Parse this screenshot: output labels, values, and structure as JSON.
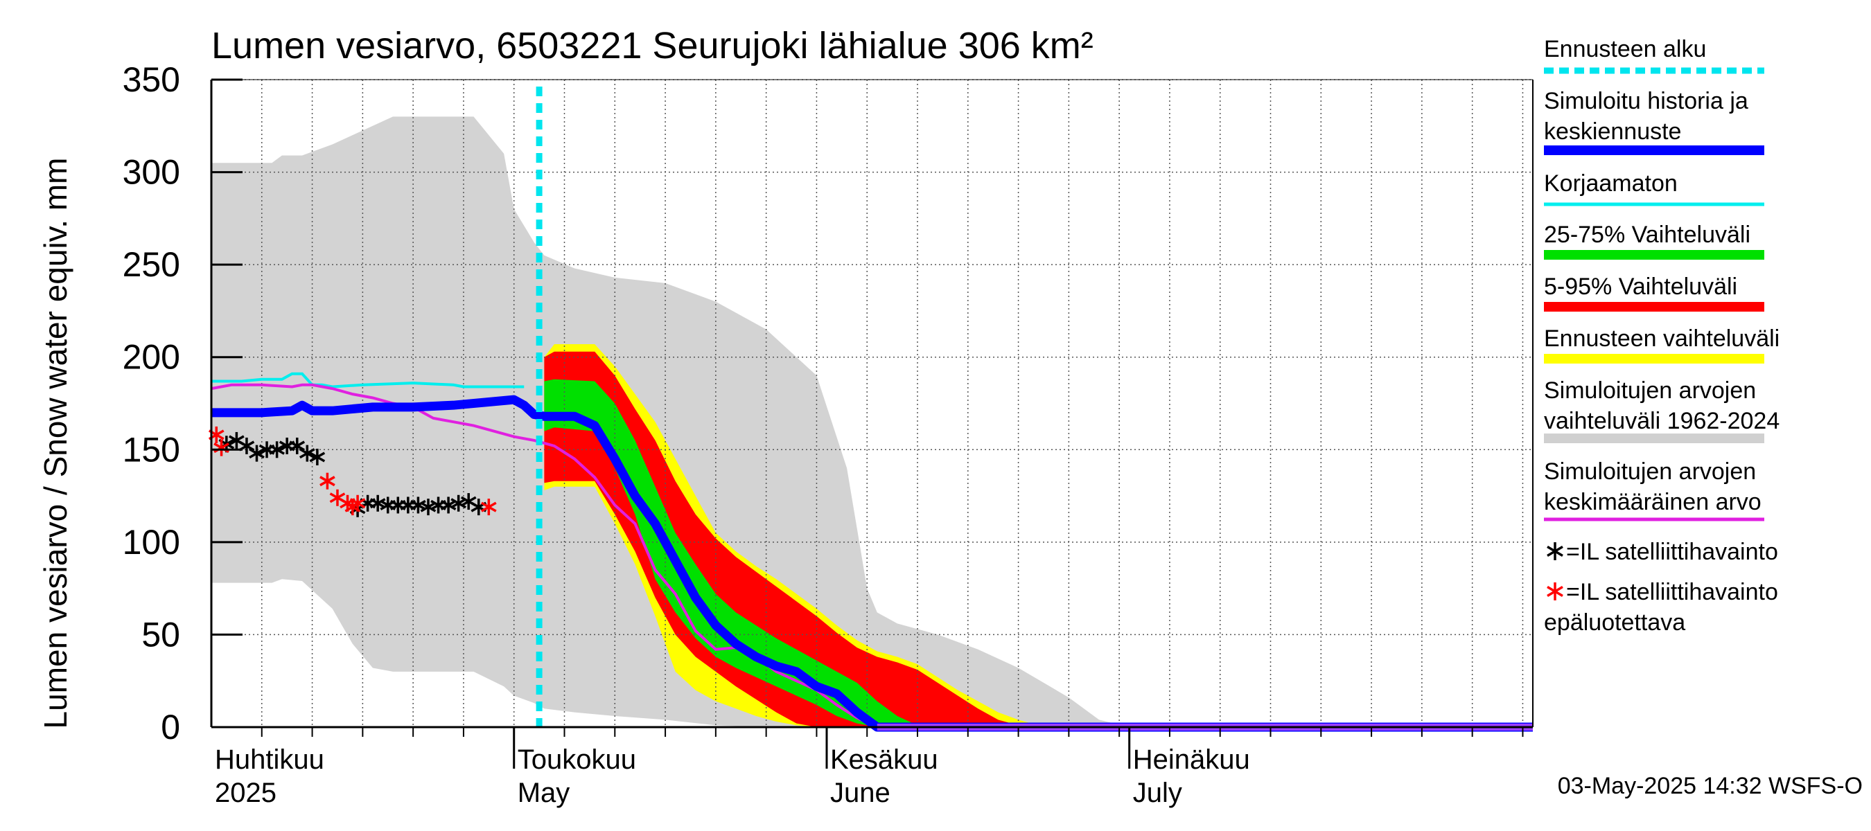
{
  "chart_data": {
    "type": "area",
    "title": "Lumen vesiarvo, 6503221 Seurujoki lähialue 306 km²",
    "ylabel": "Lumen vesiarvo / Snow water equiv.    mm",
    "ylim": [
      0,
      350
    ],
    "yticks": [
      0,
      50,
      100,
      150,
      200,
      250,
      300,
      350
    ],
    "xlim_days": [
      0,
      131
    ],
    "x_unit": "days since 2025-04-01",
    "forecast_start_day": 32.5,
    "month_labels": [
      {
        "day": 0,
        "fi": "Huhtikuu",
        "en": "2025"
      },
      {
        "day": 30,
        "fi": "Toukokuu",
        "en": "May"
      },
      {
        "day": 61,
        "fi": "Kesäkuu",
        "en": "June"
      },
      {
        "day": 91,
        "fi": "Heinäkuu",
        "en": "July"
      }
    ],
    "timestamp": "03-May-2025 14:32 WSFS-O",
    "legend": [
      {
        "label": "Ennusteen alku",
        "color": "#00e5ee",
        "style": "dotted"
      },
      {
        "label": "Simuloitu historia ja keskiennuste",
        "color": "#0000ff",
        "style": "thick"
      },
      {
        "label": "Korjaamaton",
        "color": "#00eeee",
        "style": "thin"
      },
      {
        "label": "25-75% Vaihteluväli",
        "color": "#00e000",
        "style": "band"
      },
      {
        "label": "5-95% Vaihteluväli",
        "color": "#ff0000",
        "style": "band"
      },
      {
        "label": "Ennusteen vaihteluväli",
        "color": "#ffff00",
        "style": "band"
      },
      {
        "label": "Simuloitujen arvojen vaihteluväli 1962-2024",
        "color": "#d0d0d0",
        "style": "band"
      },
      {
        "label": "Simuloitujen arvojen keskimääräinen arvo",
        "color": "#e020e0",
        "style": "thin"
      },
      {
        "label": "=IL satelliittihavainto",
        "color": "#000000",
        "style": "star"
      },
      {
        "label": "=IL satelliittihavainto epäluotettava",
        "color": "#ff0000",
        "style": "star"
      }
    ],
    "series": {
      "hist_range": {
        "name": "Simuloitujen arvojen vaihteluväli 1962-2024",
        "x": [
          0,
          6,
          7,
          9,
          10,
          12,
          14,
          16,
          18,
          21,
          26,
          29,
          30,
          32,
          33,
          36,
          40,
          45,
          50,
          55,
          60,
          63,
          65,
          66,
          68,
          72,
          76,
          80,
          85,
          88,
          91
        ],
        "upper": [
          305,
          305,
          309,
          309,
          311,
          315,
          320,
          325,
          330,
          330,
          330,
          310,
          280,
          262,
          255,
          248,
          243,
          240,
          230,
          215,
          190,
          140,
          75,
          62,
          56,
          50,
          42,
          32,
          16,
          4,
          0
        ],
        "lower": [
          78,
          78,
          80,
          79,
          74,
          64,
          45,
          32,
          30,
          30,
          30,
          22,
          17,
          13,
          10,
          8,
          6,
          4,
          1,
          0,
          0,
          0,
          0,
          0,
          0,
          0,
          0,
          0,
          0,
          0,
          0
        ]
      },
      "forecast_range": {
        "name": "Ennusteen vaihteluväli",
        "x": [
          33,
          34,
          38,
          40,
          42,
          44,
          46,
          48,
          50,
          52,
          54,
          56,
          58,
          60,
          62,
          64,
          66,
          68,
          70,
          72,
          74,
          76,
          78,
          80,
          82,
          84
        ],
        "upper": [
          200,
          207,
          207,
          195,
          180,
          165,
          145,
          125,
          105,
          95,
          87,
          80,
          72,
          64,
          55,
          47,
          41,
          38,
          34,
          27,
          20,
          14,
          8,
          4,
          1,
          0
        ],
        "lower": [
          128,
          130,
          130,
          110,
          88,
          60,
          30,
          20,
          14,
          10,
          6,
          3,
          1,
          0,
          0,
          0,
          0,
          0,
          0,
          0,
          0,
          0,
          0,
          0,
          0,
          0
        ]
      },
      "p5_95": {
        "name": "5-95% Vaihteluväli",
        "x": [
          33,
          34,
          38,
          40,
          42,
          44,
          46,
          48,
          50,
          52,
          54,
          56,
          58,
          60,
          62,
          64,
          66,
          68,
          70,
          72,
          74,
          76,
          78,
          80,
          82
        ],
        "upper": [
          200,
          203,
          203,
          190,
          172,
          155,
          133,
          115,
          102,
          92,
          84,
          76,
          68,
          60,
          51,
          43,
          38,
          35,
          31,
          24,
          17,
          10,
          4,
          1,
          0
        ],
        "lower": [
          132,
          133,
          133,
          115,
          95,
          70,
          50,
          38,
          30,
          22,
          15,
          8,
          2,
          0,
          0,
          0,
          0,
          0,
          0,
          0,
          0,
          0,
          0,
          0,
          0
        ]
      },
      "p25_75": {
        "name": "25-75% Vaihteluväli",
        "x": [
          33,
          34,
          38,
          40,
          42,
          44,
          46,
          48,
          50,
          52,
          54,
          56,
          58,
          60,
          62,
          64,
          66,
          68,
          70,
          72
        ],
        "upper": [
          187,
          188,
          187,
          175,
          155,
          130,
          105,
          88,
          72,
          62,
          55,
          48,
          42,
          36,
          30,
          24,
          14,
          6,
          1,
          0
        ],
        "lower": [
          160,
          162,
          160,
          140,
          115,
          80,
          62,
          48,
          38,
          32,
          27,
          22,
          17,
          12,
          6,
          2,
          0,
          0,
          0,
          0
        ]
      },
      "median": {
        "name": "Simuloitu historia ja keskiennuste",
        "x": [
          0,
          5,
          8,
          9,
          10,
          12,
          16,
          18,
          20,
          24,
          30,
          31,
          32,
          33,
          34,
          36,
          38,
          40,
          42,
          44,
          46,
          48,
          50,
          52,
          54,
          56,
          58,
          60,
          62,
          64,
          66,
          131
        ],
        "y": [
          170,
          170,
          171,
          174,
          171,
          171,
          173,
          173,
          173,
          174,
          177,
          174,
          169,
          168,
          168,
          168,
          163,
          145,
          125,
          110,
          90,
          70,
          55,
          45,
          38,
          33,
          30,
          22,
          18,
          8,
          0,
          0
        ]
      },
      "uncorrected": {
        "name": "Korjaamaton",
        "x": [
          0,
          3,
          5,
          7,
          8,
          9,
          10,
          11,
          12,
          15,
          20,
          24,
          25,
          31
        ],
        "y": [
          187,
          187,
          188,
          188,
          191,
          191,
          185,
          185,
          184,
          185,
          186,
          185,
          184,
          184
        ]
      },
      "mean": {
        "name": "Simuloitujen arvojen keskimääräinen arvo",
        "x": [
          0,
          2,
          5,
          8,
          9,
          10,
          12,
          14,
          16,
          18,
          20,
          22,
          24,
          26,
          28,
          30,
          32,
          34,
          36,
          38,
          40,
          42,
          44,
          46,
          48,
          50,
          52,
          54,
          56,
          58,
          60,
          62,
          64,
          66,
          131
        ],
        "y": [
          183,
          185,
          185,
          184,
          185,
          185,
          183,
          180,
          178,
          175,
          173,
          167,
          165,
          163,
          160,
          157,
          155,
          152,
          145,
          135,
          120,
          110,
          85,
          72,
          52,
          42,
          43,
          38,
          30,
          25,
          20,
          12,
          5,
          0,
          0
        ]
      },
      "sat_obs": {
        "name": "=IL satelliittihavainto",
        "x": [
          1.5,
          2.5,
          3.5,
          4.5,
          5.5,
          6.5,
          7.5,
          8.5,
          9.5,
          10.5,
          14.5,
          15.5,
          16.5,
          17.5,
          18.5,
          19.5,
          20.5,
          21.5,
          22.5,
          23.5,
          24.5,
          25.5,
          26.5
        ],
        "y": [
          153,
          155,
          152,
          148,
          150,
          150,
          152,
          152,
          148,
          146,
          118,
          121,
          121,
          120,
          120,
          120,
          120,
          119,
          120,
          120,
          121,
          122,
          119
        ]
      },
      "sat_obs_unreliable": {
        "name": "=IL satelliittihavainto epäluotettava",
        "x": [
          0.5,
          1.0,
          11.5,
          12.5,
          13.5,
          14.0,
          14.5,
          27.5
        ],
        "y": [
          158,
          151,
          133,
          124,
          121,
          119,
          121,
          119
        ]
      }
    }
  }
}
